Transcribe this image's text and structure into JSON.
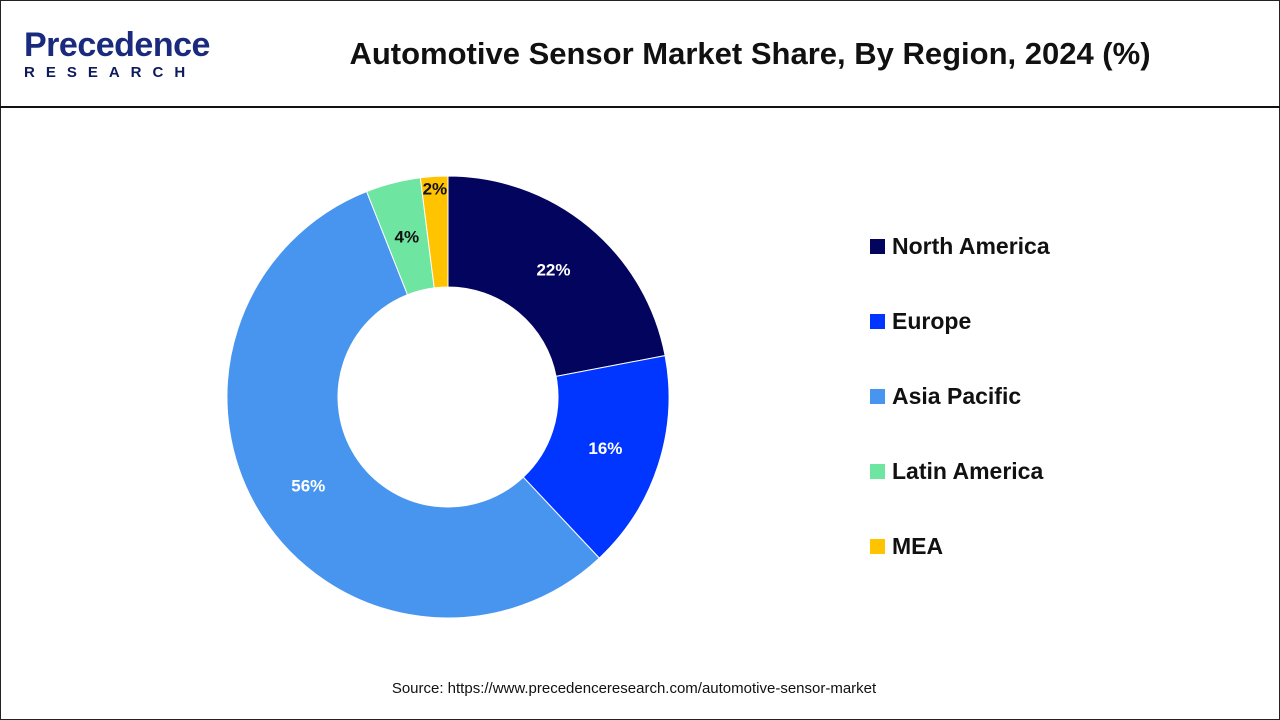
{
  "header": {
    "logo_main": "Precedence",
    "logo_sub": "RESEARCH",
    "title": "Automotive Sensor Market Share, By Region, 2024 (%)"
  },
  "chart_data": {
    "type": "pie",
    "variant": "donut",
    "title": "Automotive Sensor Market Share, By Region, 2024 (%)",
    "categories": [
      "North America",
      "Europe",
      "Asia Pacific",
      "Latin America",
      "MEA"
    ],
    "values": [
      22,
      16,
      56,
      4,
      2
    ],
    "labels": [
      "22%",
      "16%",
      "56%",
      "4%",
      "2%"
    ],
    "colors": [
      "#03045e",
      "#0036ff",
      "#4895ef",
      "#6ee5a0",
      "#ffc300"
    ],
    "label_colors": [
      "#ffffff",
      "#ffffff",
      "#ffffff",
      "#111111",
      "#111111"
    ],
    "legend_position": "right"
  },
  "source": "Source: https://www.precedenceresearch.com/automotive-sensor-market"
}
